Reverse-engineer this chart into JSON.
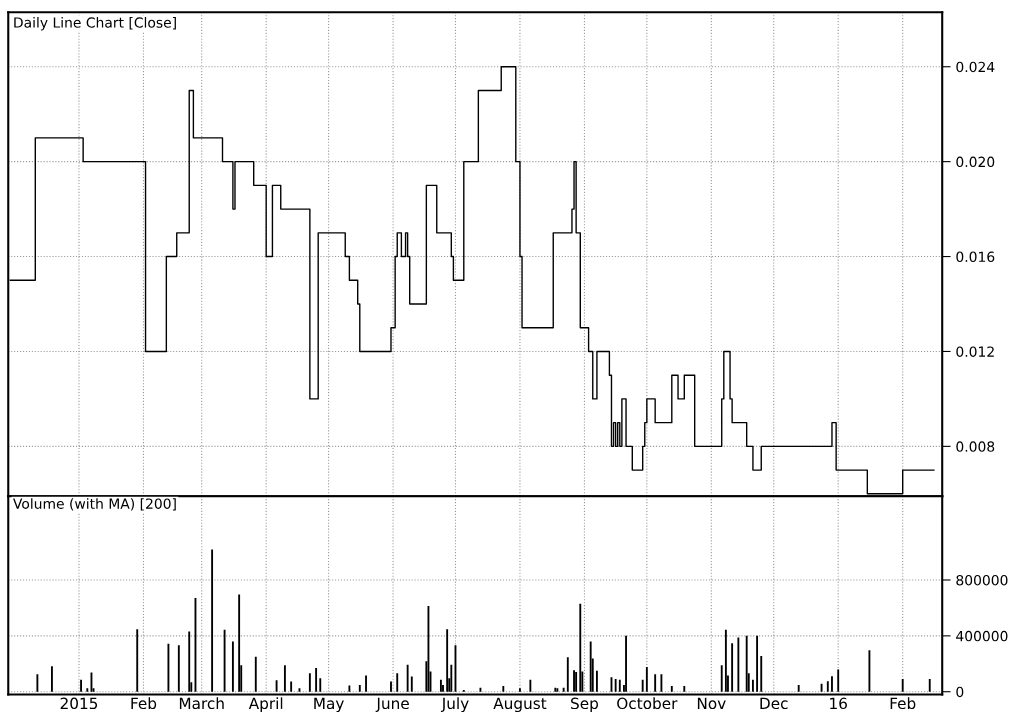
{
  "chart_data": [
    {
      "type": "step",
      "title": "Daily Line Chart [Close]",
      "color": "#000000",
      "grid": true,
      "tick_labels": "y",
      "x": [
        "2014-11-29",
        "2014-12-11",
        "2015-01-03",
        "2015-02-02",
        "2015-02-12",
        "2015-02-17",
        "2015-02-23",
        "2015-02-25",
        "2015-03-11",
        "2015-03-16",
        "2015-03-17",
        "2015-03-26",
        "2015-04-01",
        "2015-04-04",
        "2015-04-08",
        "2015-04-22",
        "2015-04-26",
        "2015-05-09",
        "2015-05-11",
        "2015-05-15",
        "2015-05-16",
        "2015-05-31",
        "2015-06-02",
        "2015-06-03",
        "2015-06-05",
        "2015-06-07",
        "2015-06-08",
        "2015-06-09",
        "2015-06-17",
        "2015-06-22",
        "2015-06-29",
        "2015-06-30",
        "2015-07-05",
        "2015-07-12",
        "2015-07-23",
        "2015-07-30",
        "2015-08-01",
        "2015-08-02",
        "2015-08-17",
        "2015-08-26",
        "2015-08-27",
        "2015-08-28",
        "2015-08-30",
        "2015-09-03",
        "2015-09-05",
        "2015-09-07",
        "2015-09-13",
        "2015-09-14",
        "2015-09-15",
        "2015-09-16",
        "2015-09-17",
        "2015-09-18",
        "2015-09-19",
        "2015-09-21",
        "2015-09-24",
        "2015-09-29",
        "2015-09-30",
        "2015-10-01",
        "2015-10-05",
        "2015-10-13",
        "2015-10-16",
        "2015-10-19",
        "2015-10-24",
        "2015-11-06",
        "2015-11-07",
        "2015-11-10",
        "2015-11-11",
        "2015-11-18",
        "2015-11-21",
        "2015-11-25",
        "2015-12-29",
        "2015-12-31",
        "2016-01-15",
        "2016-02-01",
        "2016-02-16"
      ],
      "values": [
        0.015,
        0.021,
        0.02,
        0.012,
        0.016,
        0.017,
        0.023,
        0.021,
        0.02,
        0.018,
        0.02,
        0.019,
        0.016,
        0.019,
        0.018,
        0.01,
        0.017,
        0.016,
        0.015,
        0.014,
        0.012,
        0.013,
        0.016,
        0.017,
        0.016,
        0.017,
        0.016,
        0.014,
        0.019,
        0.017,
        0.016,
        0.015,
        0.02,
        0.023,
        0.024,
        0.02,
        0.016,
        0.013,
        0.017,
        0.018,
        0.02,
        0.017,
        0.013,
        0.012,
        0.01,
        0.012,
        0.011,
        0.008,
        0.009,
        0.008,
        0.009,
        0.008,
        0.01,
        0.008,
        0.007,
        0.008,
        0.009,
        0.01,
        0.009,
        0.011,
        0.01,
        0.011,
        0.008,
        0.01,
        0.012,
        0.01,
        0.009,
        0.008,
        0.007,
        0.008,
        0.009,
        0.007,
        0.006,
        0.007,
        0.007
      ],
      "xlim": [
        "2014-11-28",
        "2016-02-20"
      ],
      "ylim": [
        0.0059,
        0.0263
      ],
      "yticks": [
        {
          "value": 0.008,
          "label": "0.008"
        },
        {
          "value": 0.012,
          "label": "0.012"
        },
        {
          "value": 0.016,
          "label": "0.016"
        },
        {
          "value": 0.02,
          "label": "0.020"
        },
        {
          "value": 0.024,
          "label": "0.024"
        }
      ],
      "xticks": [
        {
          "value": "2015-01-01",
          "label": null
        },
        {
          "value": "2015-02-01",
          "label": null
        },
        {
          "value": "2015-03-01",
          "label": null
        },
        {
          "value": "2015-04-01",
          "label": null
        },
        {
          "value": "2015-05-01",
          "label": null
        },
        {
          "value": "2015-06-01",
          "label": null
        },
        {
          "value": "2015-07-01",
          "label": null
        },
        {
          "value": "2015-08-01",
          "label": null
        },
        {
          "value": "2015-09-01",
          "label": null
        },
        {
          "value": "2015-10-01",
          "label": null
        },
        {
          "value": "2015-11-01",
          "label": null
        },
        {
          "value": "2015-12-01",
          "label": null
        },
        {
          "value": "2016-01-01",
          "label": null
        },
        {
          "value": "2016-02-01",
          "label": null
        }
      ]
    },
    {
      "type": "bar",
      "title": "Volume (with MA) [200]",
      "color": "#000000",
      "grid": true,
      "x": [
        "2014-12-12",
        "2014-12-19",
        "2015-01-02",
        "2015-01-05",
        "2015-01-07",
        "2015-01-08",
        "2015-01-29",
        "2015-02-13",
        "2015-02-18",
        "2015-02-23",
        "2015-02-24",
        "2015-02-26",
        "2015-03-06",
        "2015-03-12",
        "2015-03-16",
        "2015-03-19",
        "2015-03-20",
        "2015-03-27",
        "2015-04-06",
        "2015-04-10",
        "2015-04-13",
        "2015-04-17",
        "2015-04-22",
        "2015-04-25",
        "2015-04-27",
        "2015-05-11",
        "2015-05-16",
        "2015-05-19",
        "2015-05-31",
        "2015-06-03",
        "2015-06-08",
        "2015-06-10",
        "2015-06-17",
        "2015-06-18",
        "2015-06-19",
        "2015-06-24",
        "2015-06-25",
        "2015-06-27",
        "2015-06-28",
        "2015-06-29",
        "2015-07-01",
        "2015-07-05",
        "2015-07-13",
        "2015-07-24",
        "2015-08-01",
        "2015-08-06",
        "2015-08-18",
        "2015-08-19",
        "2015-08-22",
        "2015-08-24",
        "2015-08-27",
        "2015-08-28",
        "2015-08-30",
        "2015-08-31",
        "2015-09-04",
        "2015-09-05",
        "2015-09-07",
        "2015-09-14",
        "2015-09-16",
        "2015-09-18",
        "2015-09-20",
        "2015-09-21",
        "2015-09-29",
        "2015-10-01",
        "2015-10-05",
        "2015-10-08",
        "2015-10-13",
        "2015-10-19",
        "2015-11-06",
        "2015-11-08",
        "2015-11-09",
        "2015-11-11",
        "2015-11-14",
        "2015-11-18",
        "2015-11-19",
        "2015-11-21",
        "2015-11-23",
        "2015-11-25",
        "2015-12-13",
        "2015-12-24",
        "2015-12-27",
        "2015-12-29",
        "2016-01-01",
        "2016-01-16",
        "2016-02-01",
        "2016-02-14"
      ],
      "values": [
        126000,
        182000,
        85000,
        24000,
        138000,
        24000,
        448000,
        344000,
        332000,
        431000,
        68000,
        671000,
        1018000,
        444000,
        359000,
        696000,
        189000,
        250000,
        82000,
        189000,
        73000,
        24000,
        133000,
        170000,
        97000,
        44000,
        48000,
        116000,
        73000,
        133000,
        194000,
        109000,
        218000,
        613000,
        145000,
        85000,
        48000,
        448000,
        97000,
        194000,
        332000,
        12000,
        29000,
        41000,
        24000,
        85000,
        29000,
        24000,
        29000,
        247000,
        153000,
        141000,
        630000,
        145000,
        359000,
        238000,
        150000,
        104000,
        92000,
        85000,
        48000,
        400000,
        85000,
        177000,
        126000,
        126000,
        41000,
        41000,
        189000,
        444000,
        116000,
        347000,
        388000,
        400000,
        133000,
        85000,
        400000,
        255000,
        48000,
        58000,
        75000,
        110000,
        160000,
        297000,
        92000,
        92000
      ],
      "xlim": [
        "2014-11-28",
        "2016-02-20"
      ],
      "ylim": [
        -20000,
        1400000
      ],
      "yticks": [
        0,
        400000,
        800000
      ],
      "xticks": [
        {
          "value": "2015-01-01",
          "label": "2015"
        },
        {
          "value": "2015-02-01",
          "label": "Feb"
        },
        {
          "value": "2015-03-01",
          "label": "March"
        },
        {
          "value": "2015-04-01",
          "label": "April"
        },
        {
          "value": "2015-05-01",
          "label": "May"
        },
        {
          "value": "2015-06-01",
          "label": "June"
        },
        {
          "value": "2015-07-01",
          "label": "July"
        },
        {
          "value": "2015-08-01",
          "label": "August"
        },
        {
          "value": "2015-09-01",
          "label": "Sep"
        },
        {
          "value": "2015-10-01",
          "label": "October"
        },
        {
          "value": "2015-11-01",
          "label": "Nov"
        },
        {
          "value": "2015-12-01",
          "label": "Dec"
        },
        {
          "value": "2016-01-01",
          "label": "16"
        },
        {
          "value": "2016-02-01",
          "label": "Feb"
        }
      ]
    }
  ]
}
